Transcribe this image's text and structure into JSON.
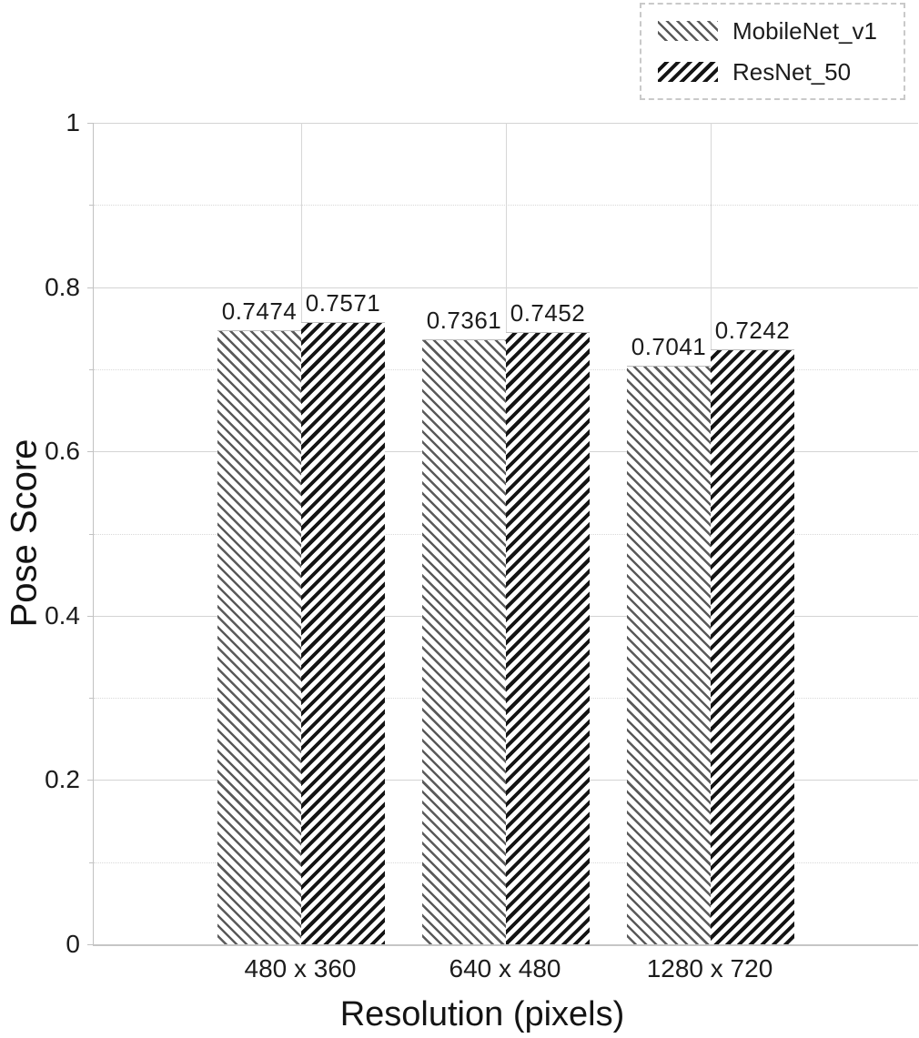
{
  "chart_data": {
    "type": "bar",
    "title": "",
    "categories": [
      "480 x 360",
      "640 x 480",
      "1280 x 720"
    ],
    "series": [
      {
        "name": "MobileNet_v1",
        "values": [
          0.7474,
          0.7361,
          0.7041
        ],
        "value_labels": [
          "0.7474",
          "0.7361",
          "0.7041"
        ],
        "hatch": "backslash-thin-gray"
      },
      {
        "name": "ResNet_50",
        "values": [
          0.7571,
          0.7452,
          0.7242
        ],
        "value_labels": [
          "0.7571",
          "0.7452",
          "0.7242"
        ],
        "hatch": "forwardslash-thick-black"
      }
    ],
    "xlabel": "Resolution (pixels)",
    "ylabel": "Pose Score",
    "ylim": [
      0,
      1
    ],
    "yticks_major": [
      0,
      0.2,
      0.4,
      0.6,
      0.8,
      1
    ],
    "yticks_minor": [
      0.1,
      0.3,
      0.5,
      0.7,
      0.9
    ],
    "ytick_labels": [
      "0",
      "0.2",
      "0.4",
      "0.6",
      "0.8",
      "1"
    ],
    "grid": {
      "horizontal_major": "solid",
      "horizontal_minor": "dotted",
      "vertical_at_category_centers": true
    },
    "legend": {
      "position": "top-right",
      "border": "thin dashed gray"
    },
    "colors": {
      "background": "#ffffff",
      "text": "#1c1c1c",
      "grid_major": "#d4d4d4",
      "grid_minor": "#d9d9d9",
      "axis_line": "#c2c2c2",
      "mobilenet_hatch_line": "#5a5a5a",
      "resnet_hatch_line": "#141414",
      "bar_fill": "#ffffff"
    }
  }
}
